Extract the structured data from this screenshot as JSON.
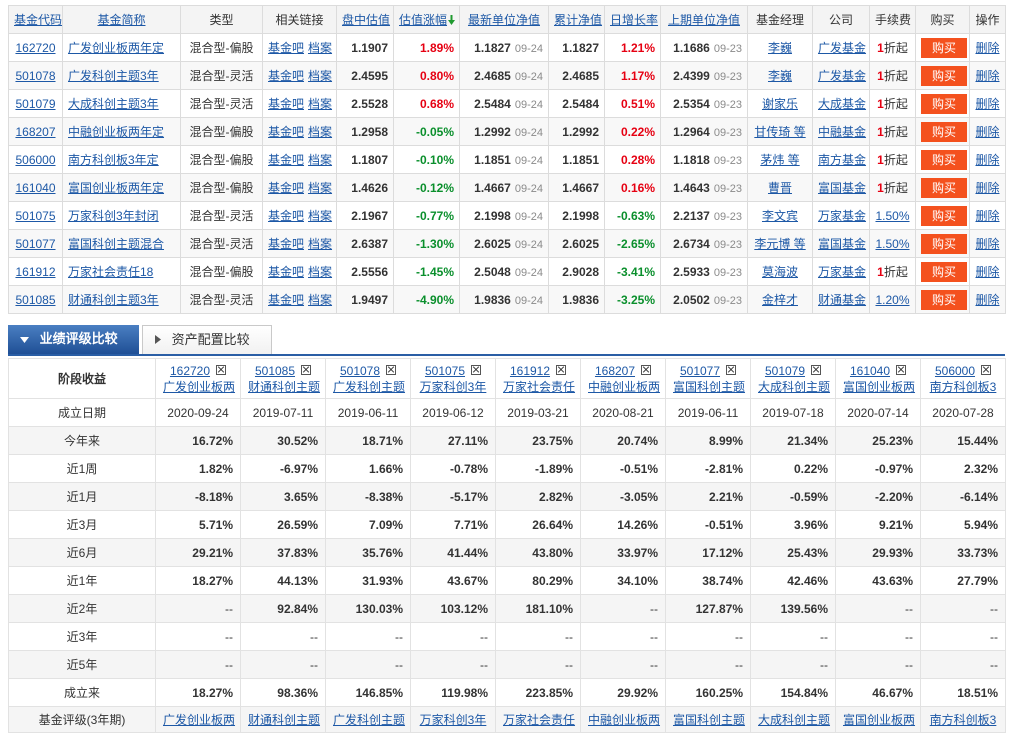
{
  "colors": {
    "positive": "#e60012",
    "negative": "#0a8f2c",
    "link": "#1d58a6",
    "tab_active": "#2a5ea5",
    "buy_button": "#f4511e"
  },
  "top_table": {
    "headers": {
      "code": "基金代码",
      "name": "基金简称",
      "type": "类型",
      "links": "相关链接",
      "estimate": "盘中估值",
      "estimate_change": "估值涨幅",
      "nav": "最新单位净值",
      "acc_nav": "累计净值",
      "daily_growth": "日增长率",
      "prev_nav": "上期单位净值",
      "manager": "基金经理",
      "company": "公司",
      "fee": "手续费",
      "buy": "购买",
      "action": "操作"
    },
    "sort_icon": "arrow-down-icon",
    "link_bar": "基金吧",
    "link_archive": "档案",
    "buy_label": "购买",
    "delete_label": "删除",
    "rows": [
      {
        "code": "162720",
        "name": "广发创业板两年定",
        "type": "混合型-偏股",
        "estimate": "1.1907",
        "estimate_change": "1.89%",
        "nav": "1.1827",
        "nav_date": "09-24",
        "acc_nav": "1.1827",
        "daily_growth": "1.21%",
        "prev_nav": "1.1686",
        "prev_date": "09-23",
        "manager": "李巍",
        "company": "广发基金",
        "fee_num": "1",
        "fee_suffix": "折起"
      },
      {
        "code": "501078",
        "name": "广发科创主题3年",
        "type": "混合型-灵活",
        "estimate": "2.4595",
        "estimate_change": "0.80%",
        "nav": "2.4685",
        "nav_date": "09-24",
        "acc_nav": "2.4685",
        "daily_growth": "1.17%",
        "prev_nav": "2.4399",
        "prev_date": "09-23",
        "manager": "李巍",
        "company": "广发基金",
        "fee_num": "1",
        "fee_suffix": "折起"
      },
      {
        "code": "501079",
        "name": "大成科创主题3年",
        "type": "混合型-灵活",
        "estimate": "2.5528",
        "estimate_change": "0.68%",
        "nav": "2.5484",
        "nav_date": "09-24",
        "acc_nav": "2.5484",
        "daily_growth": "0.51%",
        "prev_nav": "2.5354",
        "prev_date": "09-23",
        "manager": "谢家乐",
        "company": "大成基金",
        "fee_num": "1",
        "fee_suffix": "折起"
      },
      {
        "code": "168207",
        "name": "中融创业板两年定",
        "type": "混合型-偏股",
        "estimate": "1.2958",
        "estimate_change": "-0.05%",
        "nav": "1.2992",
        "nav_date": "09-24",
        "acc_nav": "1.2992",
        "daily_growth": "0.22%",
        "prev_nav": "1.2964",
        "prev_date": "09-23",
        "manager": "甘传琦 等",
        "company": "中融基金",
        "fee_num": "1",
        "fee_suffix": "折起"
      },
      {
        "code": "506000",
        "name": "南方科创板3年定",
        "type": "混合型-偏股",
        "estimate": "1.1807",
        "estimate_change": "-0.10%",
        "nav": "1.1851",
        "nav_date": "09-24",
        "acc_nav": "1.1851",
        "daily_growth": "0.28%",
        "prev_nav": "1.1818",
        "prev_date": "09-23",
        "manager": "茅炜 等",
        "company": "南方基金",
        "fee_num": "1",
        "fee_suffix": "折起"
      },
      {
        "code": "161040",
        "name": "富国创业板两年定",
        "type": "混合型-偏股",
        "estimate": "1.4626",
        "estimate_change": "-0.12%",
        "nav": "1.4667",
        "nav_date": "09-24",
        "acc_nav": "1.4667",
        "daily_growth": "0.16%",
        "prev_nav": "1.4643",
        "prev_date": "09-23",
        "manager": "曹晋",
        "company": "富国基金",
        "fee_num": "1",
        "fee_suffix": "折起"
      },
      {
        "code": "501075",
        "name": "万家科创3年封闭",
        "type": "混合型-灵活",
        "estimate": "2.1967",
        "estimate_change": "-0.77%",
        "nav": "2.1998",
        "nav_date": "09-24",
        "acc_nav": "2.1998",
        "daily_growth": "-0.63%",
        "prev_nav": "2.2137",
        "prev_date": "09-23",
        "manager": "李文宾",
        "company": "万家基金",
        "fee_rate": "1.50%"
      },
      {
        "code": "501077",
        "name": "富国科创主题混合",
        "type": "混合型-灵活",
        "estimate": "2.6387",
        "estimate_change": "-1.30%",
        "nav": "2.6025",
        "nav_date": "09-24",
        "acc_nav": "2.6025",
        "daily_growth": "-2.65%",
        "prev_nav": "2.6734",
        "prev_date": "09-23",
        "manager": "李元博 等",
        "company": "富国基金",
        "fee_rate": "1.50%"
      },
      {
        "code": "161912",
        "name": "万家社会责任18",
        "type": "混合型-偏股",
        "estimate": "2.5556",
        "estimate_change": "-1.45%",
        "nav": "2.5048",
        "nav_date": "09-24",
        "acc_nav": "2.9028",
        "daily_growth": "-3.41%",
        "prev_nav": "2.5933",
        "prev_date": "09-23",
        "manager": "莫海波",
        "company": "万家基金",
        "fee_num": "1",
        "fee_suffix": "折起"
      },
      {
        "code": "501085",
        "name": "财通科创主题3年",
        "type": "混合型-灵活",
        "estimate": "1.9497",
        "estimate_change": "-4.90%",
        "nav": "1.9836",
        "nav_date": "09-24",
        "acc_nav": "1.9836",
        "daily_growth": "-3.25%",
        "prev_nav": "2.0502",
        "prev_date": "09-23",
        "manager": "金梓才",
        "company": "财通基金",
        "fee_rate": "1.20%"
      }
    ]
  },
  "tabs": [
    {
      "label": "业绩评级比较",
      "active": true,
      "icon": "triangle-down-icon"
    },
    {
      "label": "资产配置比较",
      "active": false,
      "icon": "triangle-right-icon"
    }
  ],
  "compare": {
    "corner_label": "阶段收益",
    "remove_icon": "close-box-icon",
    "funds": [
      {
        "code": "162720",
        "name": "广发创业板两"
      },
      {
        "code": "501085",
        "name": "财通科创主题"
      },
      {
        "code": "501078",
        "name": "广发科创主题"
      },
      {
        "code": "501075",
        "name": "万家科创3年"
      },
      {
        "code": "161912",
        "name": "万家社会责任"
      },
      {
        "code": "168207",
        "name": "中融创业板两"
      },
      {
        "code": "501077",
        "name": "富国科创主题"
      },
      {
        "code": "501079",
        "name": "大成科创主题"
      },
      {
        "code": "161040",
        "name": "富国创业板两"
      },
      {
        "code": "506000",
        "name": "南方科创板3"
      }
    ],
    "rows": [
      {
        "label": "成立日期",
        "values": [
          "2020-09-24",
          "2019-07-11",
          "2019-06-11",
          "2019-06-12",
          "2019-03-21",
          "2020-08-21",
          "2019-06-11",
          "2019-07-18",
          "2020-07-14",
          "2020-07-28"
        ]
      },
      {
        "label": "今年来",
        "values": [
          "16.72%",
          "30.52%",
          "18.71%",
          "27.11%",
          "23.75%",
          "20.74%",
          "8.99%",
          "21.34%",
          "25.23%",
          "15.44%"
        ]
      },
      {
        "label": "近1周",
        "values": [
          "1.82%",
          "-6.97%",
          "1.66%",
          "-0.78%",
          "-1.89%",
          "-0.51%",
          "-2.81%",
          "0.22%",
          "-0.97%",
          "2.32%"
        ]
      },
      {
        "label": "近1月",
        "values": [
          "-8.18%",
          "3.65%",
          "-8.38%",
          "-5.17%",
          "2.82%",
          "-3.05%",
          "2.21%",
          "-0.59%",
          "-2.20%",
          "-6.14%"
        ]
      },
      {
        "label": "近3月",
        "values": [
          "5.71%",
          "26.59%",
          "7.09%",
          "7.71%",
          "26.64%",
          "14.26%",
          "-0.51%",
          "3.96%",
          "9.21%",
          "5.94%"
        ]
      },
      {
        "label": "近6月",
        "values": [
          "29.21%",
          "37.83%",
          "35.76%",
          "41.44%",
          "43.80%",
          "33.97%",
          "17.12%",
          "25.43%",
          "29.93%",
          "33.73%"
        ]
      },
      {
        "label": "近1年",
        "values": [
          "18.27%",
          "44.13%",
          "31.93%",
          "43.67%",
          "80.29%",
          "34.10%",
          "38.74%",
          "42.46%",
          "43.63%",
          "27.79%"
        ]
      },
      {
        "label": "近2年",
        "values": [
          "--",
          "92.84%",
          "130.03%",
          "103.12%",
          "181.10%",
          "--",
          "127.87%",
          "139.56%",
          "--",
          "--"
        ]
      },
      {
        "label": "近3年",
        "values": [
          "--",
          "--",
          "--",
          "--",
          "--",
          "--",
          "--",
          "--",
          "--",
          "--"
        ]
      },
      {
        "label": "近5年",
        "values": [
          "--",
          "--",
          "--",
          "--",
          "--",
          "--",
          "--",
          "--",
          "--",
          "--"
        ]
      },
      {
        "label": "成立来",
        "values": [
          "18.27%",
          "98.36%",
          "146.85%",
          "119.98%",
          "223.85%",
          "29.92%",
          "160.25%",
          "154.84%",
          "46.67%",
          "18.51%"
        ]
      }
    ],
    "rating": {
      "label": "基金评级(3年期)",
      "values": [
        "广发创业板两",
        "财通科创主题",
        "广发科创主题",
        "万家科创3年",
        "万家社会责任",
        "中融创业板两",
        "富国科创主题",
        "大成科创主题",
        "富国创业板两",
        "南方科创板3"
      ]
    }
  }
}
